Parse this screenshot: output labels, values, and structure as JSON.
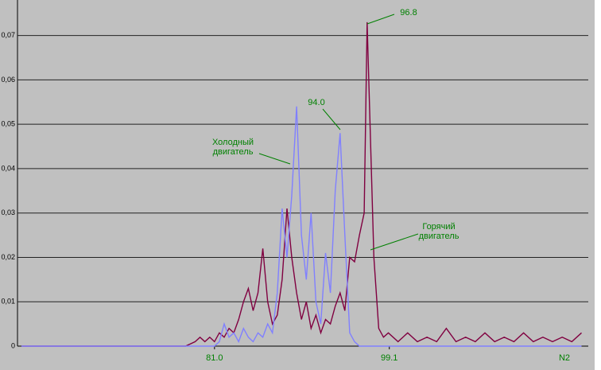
{
  "chart_data": {
    "type": "line",
    "x": [
      61,
      62,
      63,
      64,
      65,
      66,
      67,
      68,
      69,
      70,
      71,
      72,
      73,
      74,
      75,
      76,
      77,
      78,
      79,
      79.5,
      80,
      80.5,
      81,
      81.5,
      82,
      82.5,
      83,
      83.5,
      84,
      84.5,
      85,
      85.5,
      86,
      86.5,
      87,
      87.5,
      88,
      88.5,
      89,
      89.5,
      90,
      90.5,
      91,
      91.5,
      92,
      92.5,
      93,
      93.5,
      94,
      94.5,
      95,
      95.5,
      96,
      96.5,
      96.8,
      97.5,
      98,
      98.5,
      99,
      100,
      101,
      102,
      103,
      104,
      105,
      106,
      107,
      108,
      109,
      110,
      111,
      112,
      113,
      114,
      115,
      116,
      117,
      118,
      119
    ],
    "series": [
      {
        "color": "#800040",
        "values": [
          0,
          0,
          0,
          0,
          0,
          0,
          0,
          0,
          0,
          0,
          0,
          0,
          0,
          0,
          0,
          0,
          0,
          0,
          0.001,
          0.002,
          0.001,
          0.002,
          0.001,
          0.003,
          0.002,
          0.004,
          0.003,
          0.006,
          0.01,
          0.013,
          0.008,
          0.012,
          0.022,
          0.01,
          0.005,
          0.007,
          0.015,
          0.031,
          0.02,
          0.012,
          0.006,
          0.01,
          0.004,
          0.007,
          0.003,
          0.006,
          0.005,
          0.009,
          0.012,
          0.008,
          0.02,
          0.019,
          0.025,
          0.03,
          0.073,
          0.02,
          0.004,
          0.002,
          0.003,
          0.001,
          0.003,
          0.001,
          0.002,
          0.001,
          0.004,
          0.001,
          0.002,
          0.001,
          0.003,
          0.001,
          0.002,
          0.001,
          0.003,
          0.001,
          0.002,
          0.001,
          0.002,
          0.001,
          0.003
        ]
      },
      {
        "color": "#8080ff",
        "values": [
          0,
          0,
          0,
          0,
          0,
          0,
          0,
          0,
          0,
          0,
          0,
          0,
          0,
          0,
          0,
          0,
          0,
          0,
          0,
          0,
          0,
          0,
          0,
          0.001,
          0.005,
          0.002,
          0.003,
          0.001,
          0.004,
          0.002,
          0.001,
          0.003,
          0.002,
          0.005,
          0.003,
          0.012,
          0.031,
          0.02,
          0.034,
          0.054,
          0.025,
          0.015,
          0.03,
          0.01,
          0.005,
          0.021,
          0.012,
          0.035,
          0.048,
          0.025,
          0.003,
          0.001,
          0,
          0,
          0,
          0,
          0,
          0,
          0,
          0,
          0,
          0,
          0,
          0,
          0,
          0,
          0,
          0,
          0,
          0,
          0,
          0,
          0,
          0,
          0,
          0,
          0,
          0,
          0
        ]
      }
    ],
    "xlim": [
      60.6,
      119.7
    ],
    "xticks": [
      {
        "value": 81,
        "label": "81.0"
      },
      99.1
    ],
    "xlabel": "N2",
    "ylim": [
      0,
      0.078
    ],
    "yticks": [
      0,
      {
        "value": 0.01,
        "label": "0,01"
      },
      {
        "value": 0.02,
        "label": "0,02"
      },
      {
        "value": 0.03,
        "label": "0,03"
      },
      {
        "value": 0.04,
        "label": "0,04"
      },
      {
        "value": 0.05,
        "label": "0,05"
      },
      {
        "value": 0.06,
        "label": "0,06"
      },
      {
        "value": 0.07,
        "label": "0,07"
      }
    ],
    "grid": true,
    "annotations": [
      [
        "96.8"
      ],
      [
        "94.0"
      ],
      [
        "Холодный",
        "двигатель"
      ],
      [
        "Горячий",
        "двигатель"
      ]
    ]
  }
}
